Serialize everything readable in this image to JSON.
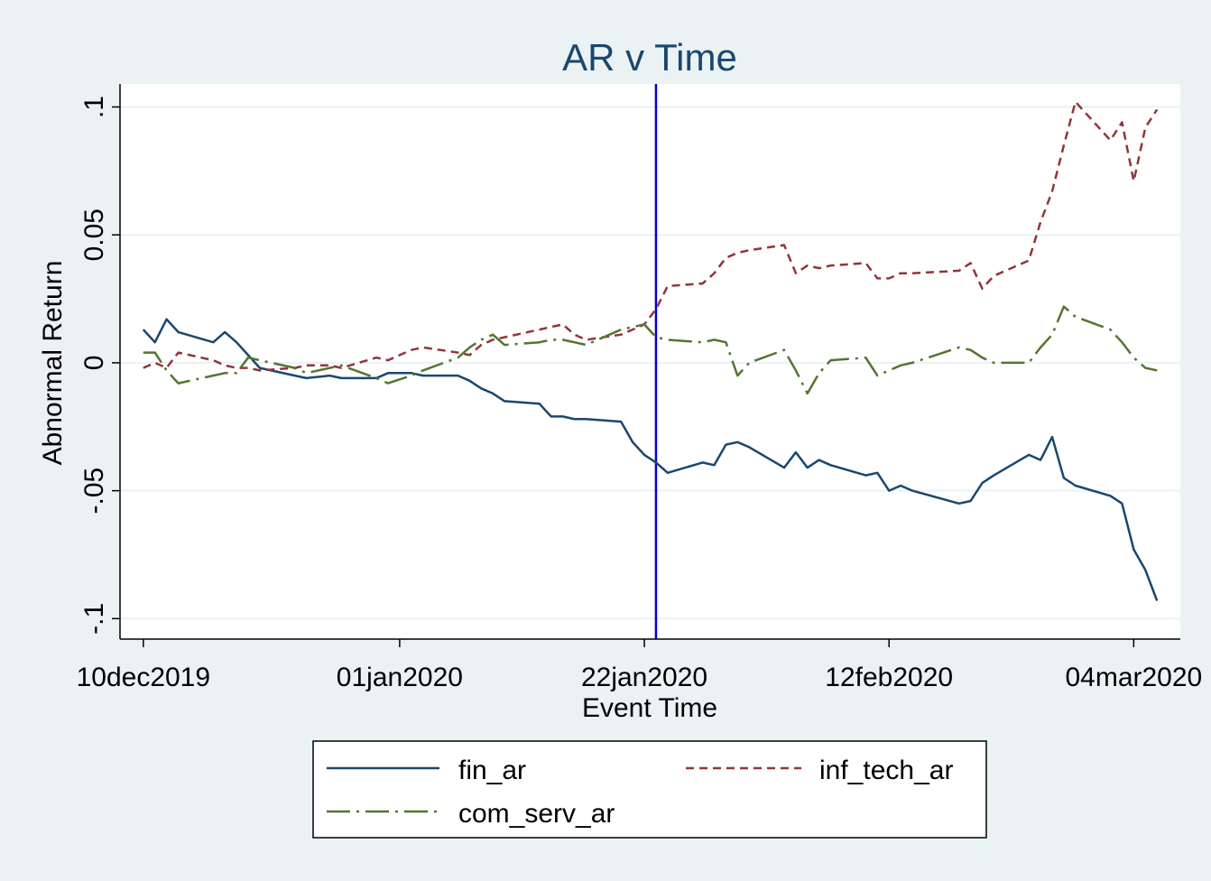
{
  "chart_data": {
    "type": "line",
    "title": "AR v Time",
    "xlabel": "Event Time",
    "ylabel": "Abnormal Return",
    "x_ticks": [
      {
        "date": "2019-12-10",
        "label": "10dec2019"
      },
      {
        "date": "2020-01-01",
        "label": "01jan2020"
      },
      {
        "date": "2020-01-22",
        "label": "22jan2020"
      },
      {
        "date": "2020-02-12",
        "label": "12feb2020"
      },
      {
        "date": "2020-03-04",
        "label": "04mar2020"
      }
    ],
    "xlim": [
      "2019-12-08",
      "2020-03-08"
    ],
    "y_ticks": [
      {
        "value": -0.1,
        "label": "-.1"
      },
      {
        "value": -0.05,
        "label": "-.05"
      },
      {
        "value": 0,
        "label": "0"
      },
      {
        "value": 0.05,
        "label": "0.05"
      },
      {
        "value": 0.1,
        "label": ".1"
      }
    ],
    "ylim": [
      -0.108,
      0.109
    ],
    "grid": true,
    "event_line": {
      "date": "2020-01-23",
      "color": "#0000cd"
    },
    "legend_position": "bottom",
    "series": [
      {
        "name": "fin_ar",
        "color": "#1a476f",
        "style": "solid",
        "points": [
          [
            "2019-12-10",
            0.013
          ],
          [
            "2019-12-11",
            0.008
          ],
          [
            "2019-12-12",
            0.017
          ],
          [
            "2019-12-13",
            0.012
          ],
          [
            "2019-12-16",
            0.008
          ],
          [
            "2019-12-17",
            0.012
          ],
          [
            "2019-12-18",
            0.008
          ],
          [
            "2019-12-19",
            0.003
          ],
          [
            "2019-12-20",
            -0.002
          ],
          [
            "2019-12-23",
            -0.005
          ],
          [
            "2019-12-24",
            -0.006
          ],
          [
            "2019-12-26",
            -0.005
          ],
          [
            "2019-12-27",
            -0.006
          ],
          [
            "2019-12-30",
            -0.006
          ],
          [
            "2019-12-31",
            -0.004
          ],
          [
            "2020-01-02",
            -0.004
          ],
          [
            "2020-01-03",
            -0.005
          ],
          [
            "2020-01-06",
            -0.005
          ],
          [
            "2020-01-07",
            -0.007
          ],
          [
            "2020-01-08",
            -0.01
          ],
          [
            "2020-01-09",
            -0.012
          ],
          [
            "2020-01-10",
            -0.015
          ],
          [
            "2020-01-13",
            -0.016
          ],
          [
            "2020-01-14",
            -0.021
          ],
          [
            "2020-01-15",
            -0.021
          ],
          [
            "2020-01-16",
            -0.022
          ],
          [
            "2020-01-17",
            -0.022
          ],
          [
            "2020-01-20",
            -0.023
          ],
          [
            "2020-01-21",
            -0.031
          ],
          [
            "2020-01-22",
            -0.036
          ],
          [
            "2020-01-23",
            -0.039
          ],
          [
            "2020-01-24",
            -0.043
          ],
          [
            "2020-01-27",
            -0.039
          ],
          [
            "2020-01-28",
            -0.04
          ],
          [
            "2020-01-29",
            -0.032
          ],
          [
            "2020-01-30",
            -0.031
          ],
          [
            "2020-01-31",
            -0.033
          ],
          [
            "2020-02-03",
            -0.041
          ],
          [
            "2020-02-04",
            -0.035
          ],
          [
            "2020-02-05",
            -0.041
          ],
          [
            "2020-02-06",
            -0.038
          ],
          [
            "2020-02-07",
            -0.04
          ],
          [
            "2020-02-10",
            -0.044
          ],
          [
            "2020-02-11",
            -0.043
          ],
          [
            "2020-02-12",
            -0.05
          ],
          [
            "2020-02-13",
            -0.048
          ],
          [
            "2020-02-14",
            -0.05
          ],
          [
            "2020-02-18",
            -0.055
          ],
          [
            "2020-02-19",
            -0.054
          ],
          [
            "2020-02-20",
            -0.047
          ],
          [
            "2020-02-21",
            -0.044
          ],
          [
            "2020-02-24",
            -0.036
          ],
          [
            "2020-02-25",
            -0.038
          ],
          [
            "2020-02-26",
            -0.029
          ],
          [
            "2020-02-27",
            -0.045
          ],
          [
            "2020-02-28",
            -0.048
          ],
          [
            "2020-03-02",
            -0.052
          ],
          [
            "2020-03-03",
            -0.055
          ],
          [
            "2020-03-04",
            -0.073
          ],
          [
            "2020-03-05",
            -0.081
          ],
          [
            "2020-03-06",
            -0.093
          ]
        ]
      },
      {
        "name": "inf_tech_ar",
        "color": "#90353b",
        "style": "dash",
        "points": [
          [
            "2019-12-10",
            -0.002
          ],
          [
            "2019-12-11",
            0.0
          ],
          [
            "2019-12-12",
            -0.002
          ],
          [
            "2019-12-13",
            0.004
          ],
          [
            "2019-12-16",
            0.001
          ],
          [
            "2019-12-17",
            -0.001
          ],
          [
            "2019-12-18",
            -0.002
          ],
          [
            "2019-12-19",
            -0.002
          ],
          [
            "2019-12-20",
            -0.003
          ],
          [
            "2019-12-23",
            -0.002
          ],
          [
            "2019-12-24",
            -0.001
          ],
          [
            "2019-12-26",
            -0.001
          ],
          [
            "2019-12-27",
            -0.002
          ],
          [
            "2019-12-30",
            0.002
          ],
          [
            "2019-12-31",
            0.001
          ],
          [
            "2020-01-02",
            0.005
          ],
          [
            "2020-01-03",
            0.006
          ],
          [
            "2020-01-06",
            0.004
          ],
          [
            "2020-01-07",
            0.003
          ],
          [
            "2020-01-08",
            0.007
          ],
          [
            "2020-01-09",
            0.009
          ],
          [
            "2020-01-10",
            0.01
          ],
          [
            "2020-01-13",
            0.013
          ],
          [
            "2020-01-14",
            0.014
          ],
          [
            "2020-01-15",
            0.015
          ],
          [
            "2020-01-16",
            0.011
          ],
          [
            "2020-01-17",
            0.009
          ],
          [
            "2020-01-20",
            0.011
          ],
          [
            "2020-01-21",
            0.013
          ],
          [
            "2020-01-22",
            0.015
          ],
          [
            "2020-01-23",
            0.021
          ],
          [
            "2020-01-24",
            0.03
          ],
          [
            "2020-01-27",
            0.031
          ],
          [
            "2020-01-28",
            0.035
          ],
          [
            "2020-01-29",
            0.041
          ],
          [
            "2020-01-30",
            0.043
          ],
          [
            "2020-01-31",
            0.044
          ],
          [
            "2020-02-03",
            0.046
          ],
          [
            "2020-02-04",
            0.035
          ],
          [
            "2020-02-05",
            0.038
          ],
          [
            "2020-02-06",
            0.037
          ],
          [
            "2020-02-07",
            0.038
          ],
          [
            "2020-02-10",
            0.039
          ],
          [
            "2020-02-11",
            0.033
          ],
          [
            "2020-02-12",
            0.033
          ],
          [
            "2020-02-13",
            0.035
          ],
          [
            "2020-02-14",
            0.035
          ],
          [
            "2020-02-18",
            0.036
          ],
          [
            "2020-02-19",
            0.039
          ],
          [
            "2020-02-20",
            0.029
          ],
          [
            "2020-02-21",
            0.034
          ],
          [
            "2020-02-24",
            0.04
          ],
          [
            "2020-02-25",
            0.055
          ],
          [
            "2020-02-26",
            0.067
          ],
          [
            "2020-02-27",
            0.085
          ],
          [
            "2020-02-28",
            0.102
          ],
          [
            "2020-03-02",
            0.087
          ],
          [
            "2020-03-03",
            0.094
          ],
          [
            "2020-03-04",
            0.071
          ],
          [
            "2020-03-05",
            0.092
          ],
          [
            "2020-03-06",
            0.099
          ]
        ]
      },
      {
        "name": "com_serv_ar",
        "color": "#55752f",
        "style": "dashdot",
        "points": [
          [
            "2019-12-10",
            0.004
          ],
          [
            "2019-12-11",
            0.004
          ],
          [
            "2019-12-12",
            -0.003
          ],
          [
            "2019-12-13",
            -0.008
          ],
          [
            "2019-12-16",
            -0.005
          ],
          [
            "2019-12-17",
            -0.004
          ],
          [
            "2019-12-18",
            -0.004
          ],
          [
            "2019-12-19",
            0.002
          ],
          [
            "2019-12-20",
            0.001
          ],
          [
            "2019-12-23",
            -0.002
          ],
          [
            "2019-12-24",
            -0.004
          ],
          [
            "2019-12-26",
            -0.002
          ],
          [
            "2019-12-27",
            -0.001
          ],
          [
            "2019-12-30",
            -0.006
          ],
          [
            "2019-12-31",
            -0.008
          ],
          [
            "2020-01-02",
            -0.005
          ],
          [
            "2020-01-03",
            -0.003
          ],
          [
            "2020-01-06",
            0.002
          ],
          [
            "2020-01-07",
            0.006
          ],
          [
            "2020-01-08",
            0.009
          ],
          [
            "2020-01-09",
            0.011
          ],
          [
            "2020-01-10",
            0.007
          ],
          [
            "2020-01-13",
            0.008
          ],
          [
            "2020-01-14",
            0.009
          ],
          [
            "2020-01-15",
            0.009
          ],
          [
            "2020-01-16",
            0.008
          ],
          [
            "2020-01-17",
            0.007
          ],
          [
            "2020-01-20",
            0.013
          ],
          [
            "2020-01-21",
            0.014
          ],
          [
            "2020-01-22",
            0.015
          ],
          [
            "2020-01-23",
            0.01
          ],
          [
            "2020-01-24",
            0.009
          ],
          [
            "2020-01-27",
            0.008
          ],
          [
            "2020-01-28",
            0.009
          ],
          [
            "2020-01-29",
            0.008
          ],
          [
            "2020-01-30",
            -0.005
          ],
          [
            "2020-01-31",
            0.0
          ],
          [
            "2020-02-03",
            0.005
          ],
          [
            "2020-02-04",
            -0.003
          ],
          [
            "2020-02-05",
            -0.012
          ],
          [
            "2020-02-06",
            -0.004
          ],
          [
            "2020-02-07",
            0.001
          ],
          [
            "2020-02-10",
            0.002
          ],
          [
            "2020-02-11",
            -0.005
          ],
          [
            "2020-02-12",
            -0.003
          ],
          [
            "2020-02-13",
            -0.001
          ],
          [
            "2020-02-14",
            0.0
          ],
          [
            "2020-02-18",
            0.006
          ],
          [
            "2020-02-19",
            0.005
          ],
          [
            "2020-02-20",
            0.002
          ],
          [
            "2020-02-21",
            0.0
          ],
          [
            "2020-02-24",
            0.0
          ],
          [
            "2020-02-25",
            0.006
          ],
          [
            "2020-02-26",
            0.011
          ],
          [
            "2020-02-27",
            0.022
          ],
          [
            "2020-02-28",
            0.018
          ],
          [
            "2020-03-02",
            0.013
          ],
          [
            "2020-03-03",
            0.008
          ],
          [
            "2020-03-04",
            0.002
          ],
          [
            "2020-03-05",
            -0.002
          ],
          [
            "2020-03-06",
            -0.003
          ]
        ]
      }
    ]
  }
}
